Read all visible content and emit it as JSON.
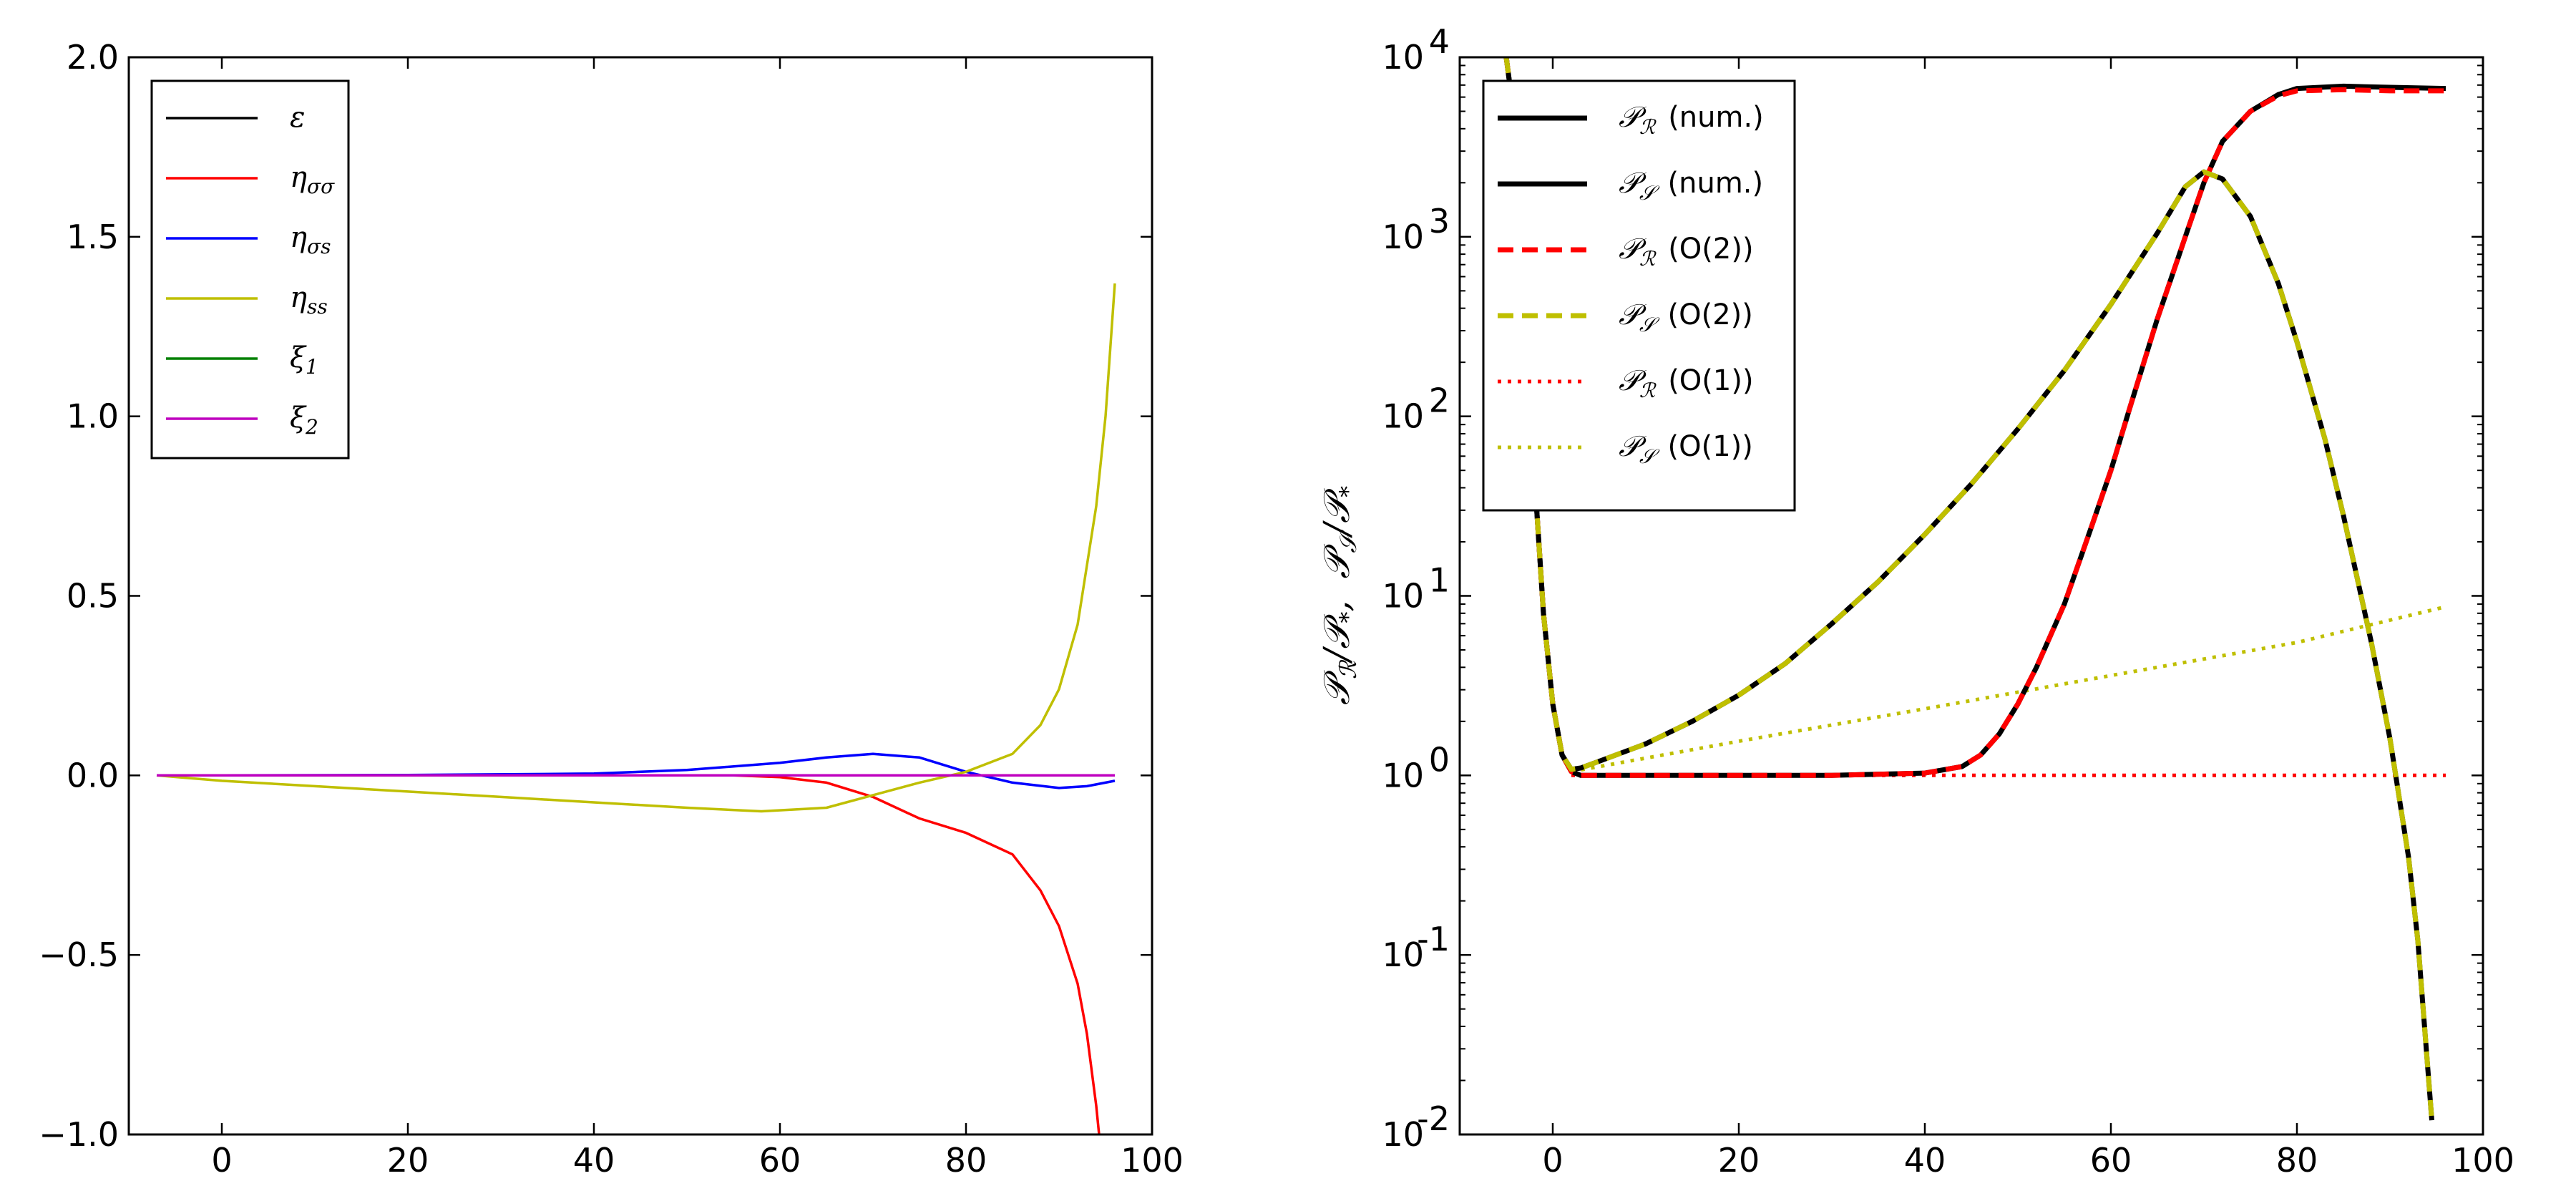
{
  "chart_data": [
    {
      "type": "line",
      "title": "",
      "xlabel": "",
      "ylabel": "",
      "xlim": [
        -10,
        100
      ],
      "ylim": [
        -1.0,
        2.0
      ],
      "x_ticks": [
        0,
        20,
        40,
        60,
        80,
        100
      ],
      "x_tick_labels": [
        "0",
        "20",
        "40",
        "60",
        "80",
        "100"
      ],
      "y_ticks": [
        -1.0,
        -0.5,
        0.0,
        0.5,
        1.0,
        1.5,
        2.0
      ],
      "y_tick_labels": [
        "−1.0",
        "−0.5",
        "0.0",
        "0.5",
        "1.0",
        "1.5",
        "2.0"
      ],
      "legend_position": "upper-left",
      "series": [
        {
          "name": "ε",
          "color": "#000000",
          "style": "solid",
          "x": [
            -7,
            0,
            20,
            40,
            60,
            80,
            90,
            96
          ],
          "y": [
            0,
            0,
            0,
            0,
            0,
            0,
            0,
            0
          ]
        },
        {
          "name": "ησσ",
          "color": "#ff0000",
          "style": "solid",
          "x": [
            -7,
            0,
            20,
            40,
            55,
            60,
            65,
            70,
            75,
            80,
            85,
            88,
            90,
            92,
            93,
            94,
            94.5
          ],
          "y": [
            0,
            0,
            0,
            0,
            0,
            -0.005,
            -0.02,
            -0.06,
            -0.12,
            -0.16,
            -0.22,
            -0.32,
            -0.42,
            -0.58,
            -0.72,
            -0.92,
            -1.05
          ]
        },
        {
          "name": "ησs",
          "color": "#0000ff",
          "style": "solid",
          "x": [
            -7,
            0,
            20,
            40,
            50,
            60,
            65,
            70,
            75,
            80,
            85,
            90,
            93,
            96
          ],
          "y": [
            0,
            0,
            0.001,
            0.005,
            0.015,
            0.035,
            0.05,
            0.06,
            0.05,
            0.01,
            -0.02,
            -0.035,
            -0.03,
            -0.015
          ]
        },
        {
          "name": "ηss",
          "color": "#bfbf00",
          "style": "solid",
          "x": [
            -7,
            0,
            10,
            20,
            30,
            40,
            50,
            58,
            65,
            70,
            75,
            80,
            85,
            88,
            90,
            92,
            94,
            95,
            96
          ],
          "y": [
            0,
            -0.015,
            -0.03,
            -0.045,
            -0.06,
            -0.075,
            -0.09,
            -0.1,
            -0.09,
            -0.055,
            -0.02,
            0.01,
            0.06,
            0.14,
            0.24,
            0.42,
            0.75,
            1.0,
            1.37
          ]
        },
        {
          "name": "ξ1",
          "color": "#008000",
          "style": "solid",
          "x": [
            -7,
            96
          ],
          "y": [
            0,
            0
          ]
        },
        {
          "name": "ξ2",
          "color": "#bf00bf",
          "style": "solid",
          "x": [
            -7,
            96
          ],
          "y": [
            0,
            0
          ]
        }
      ],
      "legend": [
        "ε",
        "ησσ",
        "ησs",
        "ηss",
        "ξ1",
        "ξ2"
      ]
    },
    {
      "type": "line",
      "title": "",
      "xlabel": "",
      "ylabel": "𝒫ℛ/𝒫*,  𝒫𝒮/𝒫*",
      "yscale": "log",
      "xlim": [
        -10,
        100
      ],
      "ylim": [
        0.01,
        10000
      ],
      "x_ticks": [
        0,
        20,
        40,
        60,
        80,
        100
      ],
      "x_tick_labels": [
        "0",
        "20",
        "40",
        "60",
        "80",
        "100"
      ],
      "y_ticks": [
        0.01,
        0.1,
        1,
        10,
        100,
        1000,
        10000
      ],
      "y_tick_labels": [
        {
          "base": "10",
          "exp": "-2"
        },
        {
          "base": "10",
          "exp": "-1"
        },
        {
          "base": "10",
          "exp": "0"
        },
        {
          "base": "10",
          "exp": "1"
        },
        {
          "base": "10",
          "exp": "2"
        },
        {
          "base": "10",
          "exp": "3"
        },
        {
          "base": "10",
          "exp": "4"
        }
      ],
      "legend_position": "upper-left",
      "series": [
        {
          "name": "𝒫ℛ (num.)",
          "color": "#000000",
          "style": "solid",
          "width": 7,
          "x": [
            -5,
            -4,
            -3,
            -2,
            -1,
            0,
            1,
            2,
            3,
            5,
            10,
            20,
            30,
            40,
            44,
            46,
            48,
            50,
            52,
            55,
            58,
            60,
            62,
            65,
            68,
            70,
            72,
            75,
            78,
            80,
            85,
            90,
            96
          ],
          "y": [
            10000,
            4000,
            300,
            50,
            8,
            2.5,
            1.3,
            1.05,
            1.0,
            1.0,
            1.0,
            1.0,
            1.0,
            1.03,
            1.12,
            1.3,
            1.7,
            2.5,
            4.0,
            9,
            25,
            50,
            110,
            350,
            1000,
            2000,
            3400,
            5000,
            6200,
            6700,
            6900,
            6800,
            6700
          ]
        },
        {
          "name": "𝒫𝒮 (num.)",
          "color": "#000000",
          "style": "solid",
          "width": 7,
          "x": [
            -5,
            -4,
            -3,
            -2,
            -1,
            0,
            1,
            2,
            3,
            5,
            10,
            15,
            20,
            25,
            30,
            35,
            40,
            45,
            50,
            55,
            60,
            65,
            68,
            70,
            72,
            75,
            78,
            80,
            83,
            85,
            88,
            90,
            92,
            93,
            94.5
          ],
          "y": [
            10000,
            4000,
            300,
            50,
            8,
            2.5,
            1.3,
            1.08,
            1.1,
            1.2,
            1.5,
            2.0,
            2.8,
            4.2,
            7,
            12,
            22,
            42,
            85,
            180,
            420,
            1050,
            1900,
            2300,
            2100,
            1300,
            550,
            260,
            75,
            28,
            5.5,
            1.6,
            0.35,
            0.12,
            0.012
          ]
        },
        {
          "name": "𝒫ℛ (O(2))",
          "color": "#ff0000",
          "style": "dashed",
          "width": 7,
          "x": [
            -5,
            -4,
            -3,
            -2,
            -1,
            0,
            1,
            2,
            3,
            5,
            10,
            20,
            30,
            40,
            44,
            46,
            48,
            50,
            52,
            55,
            58,
            60,
            62,
            65,
            68,
            70,
            72,
            75,
            78,
            80,
            85,
            90,
            96
          ],
          "y": [
            10000,
            4000,
            300,
            50,
            8,
            2.5,
            1.3,
            1.05,
            1.0,
            1.0,
            1.0,
            1.0,
            1.0,
            1.03,
            1.12,
            1.3,
            1.7,
            2.5,
            4.0,
            9,
            25,
            50,
            110,
            350,
            1000,
            2000,
            3400,
            5000,
            6100,
            6500,
            6600,
            6500,
            6500
          ]
        },
        {
          "name": "𝒫𝒮 (O(2))",
          "color": "#bfbf00",
          "style": "dashed",
          "width": 7,
          "x": [
            -5,
            -4,
            -3,
            -2,
            -1,
            0,
            1,
            2,
            3,
            5,
            10,
            15,
            20,
            25,
            30,
            35,
            40,
            45,
            50,
            55,
            60,
            65,
            68,
            70,
            72,
            75,
            78,
            80,
            83,
            85,
            88,
            90,
            92,
            93,
            94.5
          ],
          "y": [
            10000,
            4000,
            300,
            50,
            8,
            2.5,
            1.3,
            1.08,
            1.1,
            1.2,
            1.5,
            2.0,
            2.8,
            4.2,
            7,
            12,
            22,
            42,
            85,
            180,
            420,
            1050,
            1900,
            2300,
            2100,
            1300,
            550,
            260,
            75,
            28,
            5.5,
            1.6,
            0.35,
            0.12,
            0.012
          ]
        },
        {
          "name": "𝒫ℛ (O(1))",
          "color": "#ff0000",
          "style": "dotted",
          "width": 5,
          "x": [
            2,
            96
          ],
          "y": [
            1.0,
            1.0
          ]
        },
        {
          "name": "𝒫𝒮 (O(1))",
          "color": "#bfbf00",
          "style": "dotted",
          "width": 5,
          "x": [
            2,
            20,
            40,
            60,
            80,
            96
          ],
          "y": [
            1.05,
            1.55,
            2.35,
            3.6,
            5.5,
            8.7
          ]
        }
      ],
      "legend": [
        "𝒫ℛ (num.)",
        "𝒫𝒮 (num.)",
        "𝒫ℛ (O(2))",
        "𝒫𝒮 (O(2))",
        "𝒫ℛ (O(1))",
        "𝒫𝒮 (O(1))"
      ]
    }
  ],
  "legend_symbols": {
    "left": [
      "ε",
      "η",
      "η",
      "η",
      "ξ",
      "ξ"
    ],
    "left_subscripts": [
      "",
      "σσ",
      "σs",
      "ss",
      "1",
      "2"
    ],
    "right_main": [
      "𝒫",
      "𝒫",
      "𝒫",
      "𝒫",
      "𝒫",
      "𝒫"
    ],
    "right_subscripts": [
      "ℛ",
      "𝒮",
      "ℛ",
      "𝒮",
      "ℛ",
      "𝒮"
    ],
    "right_suffix": [
      "(num.)",
      "(num.)",
      "(O(2))",
      "(O(2))",
      "(O(1))",
      "(O(1))"
    ]
  },
  "ylabel_parts": {
    "p1": "𝒫",
    "s1": "ℛ",
    "star1": "/𝒫",
    "sub1": "*",
    "comma": ",",
    "p2": "𝒫",
    "s2": "𝒮",
    "star2": "/𝒫",
    "sub2": "*"
  }
}
